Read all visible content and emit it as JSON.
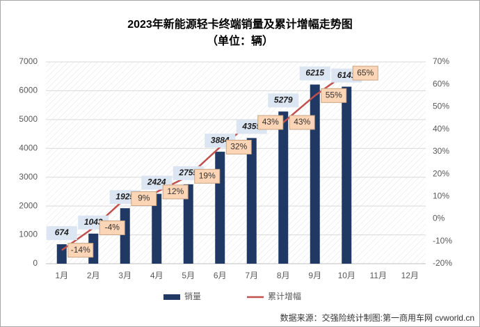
{
  "chart_data": {
    "type": "bar_line",
    "title": "2023年新能源轻卡终端销量及累计增幅走势图",
    "subtitle": "（单位：辆）",
    "source": "数据来源：交强险统计制图:第一商用车网 cvworld.cn",
    "categories": [
      "1月",
      "2月",
      "3月",
      "4月",
      "5月",
      "6月",
      "7月",
      "8月",
      "9月",
      "10月",
      "11月",
      "12月"
    ],
    "series": [
      {
        "name": "销量",
        "type": "bar",
        "color": "#1f3864",
        "values": [
          674,
          1043,
          1925,
          2424,
          2755,
          3884,
          4359,
          5279,
          6215,
          6141,
          null,
          null
        ]
      },
      {
        "name": "累计增幅",
        "type": "line",
        "axis": "y2",
        "color": "#c0504d",
        "values": [
          -14,
          -4,
          9,
          12,
          19,
          32,
          43,
          43,
          55,
          65,
          null,
          null
        ],
        "value_labels": [
          "-14%",
          "-4%",
          "9%",
          "12%",
          "19%",
          "32%",
          "43%",
          "43%",
          "55%",
          "65%",
          null,
          null
        ]
      }
    ],
    "ylim": [
      0,
      7000
    ],
    "yticks": [
      0,
      1000,
      2000,
      3000,
      4000,
      5000,
      6000,
      7000
    ],
    "y2lim": [
      -20,
      70
    ],
    "y2ticks": [
      {
        "value": -20,
        "label": "-20%"
      },
      {
        "value": -10,
        "label": "-10%"
      },
      {
        "value": 0,
        "label": "0%"
      },
      {
        "value": 10,
        "label": "10%"
      },
      {
        "value": 20,
        "label": "20%"
      },
      {
        "value": 30,
        "label": "30%"
      },
      {
        "value": 40,
        "label": "40%"
      },
      {
        "value": 50,
        "label": "50%"
      },
      {
        "value": 60,
        "label": "60%"
      },
      {
        "value": 70,
        "label": "70%"
      }
    ],
    "grid": true,
    "legend": "bottom"
  }
}
